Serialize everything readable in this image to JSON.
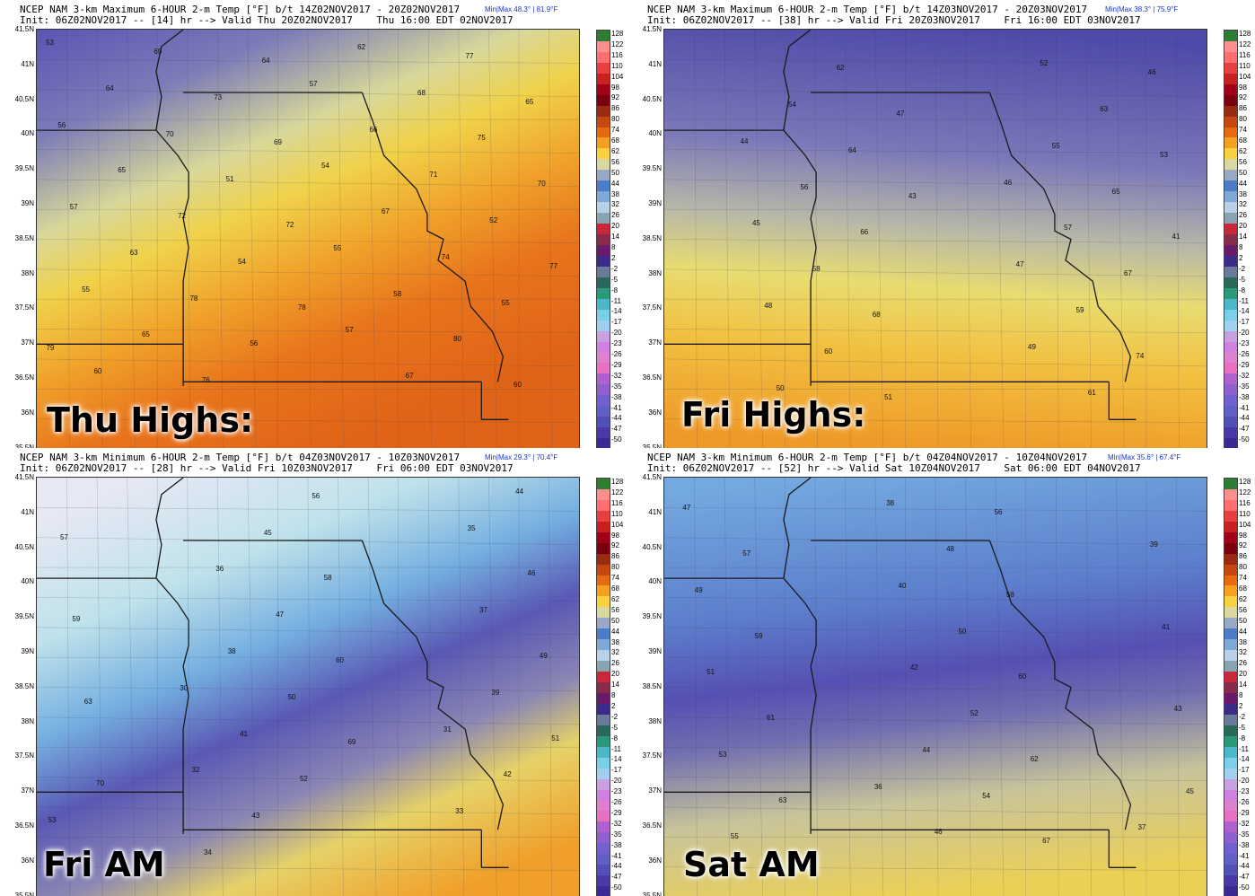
{
  "panels": [
    {
      "header_line1": "NCEP NAM 3-km Maximum 6-HOUR 2-m Temp [°F] b/t 14Z02NOV2017 - 20Z02NOV2017",
      "header_line2": "Init: 06Z02NOV2017 -- [14] hr --> Valid Thu 20Z02NOV2017    Thu 16:00 EDT 02NOV2017",
      "minmax": "Min|Max 48.3° | 81.9°F",
      "caption": "Thu Highs:",
      "theme": "warm",
      "lat_labels": [
        "41.5N",
        "41N",
        "40.5N",
        "40N",
        "39.5N",
        "39N",
        "38.5N",
        "38N",
        "37.5N",
        "37N",
        "36.5N",
        "36N",
        "35.5N"
      ],
      "values": [
        "53",
        "57",
        "56",
        "54",
        "57",
        "55",
        "55",
        "57",
        "60",
        "62",
        "64",
        "66",
        "65",
        "67",
        "63",
        "58",
        "65",
        "67",
        "69",
        "68",
        "70",
        "71",
        "72",
        "74",
        "78",
        "80",
        "76",
        "77",
        "73",
        "75",
        "51",
        "52",
        "54",
        "55",
        "56",
        "60",
        "64",
        "65",
        "69",
        "70",
        "72",
        "77",
        "78",
        "79"
      ]
    },
    {
      "header_line1": "NCEP NAM 3-km Maximum 6-HOUR 2-m Temp [°F] b/t 14Z03NOV2017 - 20Z03NOV2017",
      "header_line2": "Init: 06Z02NOV2017 -- [38] hr --> Valid Fri 20Z03NOV2017    Fri 16:00 EDT 03NOV2017",
      "minmax": "Min|Max 38.3° | 75.9°F",
      "caption": "Fri Highs:",
      "theme": "mixed",
      "lat_labels": [
        "41.5N",
        "41N",
        "40.5N",
        "40N",
        "39.5N",
        "39N",
        "38.5N",
        "38N",
        "37.5N",
        "37N",
        "36.5N",
        "36N",
        "35.5N"
      ],
      "values": [
        "44",
        "46",
        "45",
        "47",
        "48",
        "49",
        "50",
        "52",
        "54",
        "55",
        "56",
        "57",
        "58",
        "59",
        "60",
        "61",
        "62",
        "63",
        "64",
        "65",
        "66",
        "67",
        "68",
        "74",
        "51",
        "46",
        "47",
        "53",
        "43",
        "41"
      ]
    },
    {
      "header_line1": "NCEP NAM 3-km Minimum 6-HOUR 2-m Temp [°F] b/t 04Z03NOV2017 - 10Z03NOV2017",
      "header_line2": "Init: 06Z02NOV2017 -- [28] hr --> Valid Fri 10Z03NOV2017    Fri 06:00 EDT 03NOV2017",
      "minmax": "Min|Max 29.3° | 70.4°F",
      "caption": "Fri AM",
      "theme": "cold-warm",
      "lat_labels": [
        "41.5N",
        "41N",
        "40.5N",
        "40N",
        "39.5N",
        "39N",
        "38.5N",
        "38N",
        "37.5N",
        "37N",
        "36.5N",
        "36N",
        "35.5N"
      ],
      "values": [
        "30",
        "31",
        "32",
        "33",
        "34",
        "35",
        "36",
        "37",
        "38",
        "39",
        "41",
        "42",
        "43",
        "44",
        "45",
        "46",
        "47",
        "49",
        "50",
        "51",
        "52",
        "53",
        "56",
        "57",
        "58",
        "59",
        "60",
        "63",
        "69",
        "70"
      ]
    },
    {
      "header_line1": "NCEP NAM 3-km Minimum 6-HOUR 2-m Temp [°F] b/t 04Z04NOV2017 - 10Z04NOV2017",
      "header_line2": "Init: 06Z02NOV2017 -- [52] hr --> Valid Sat 10Z04NOV2017    Sat 06:00 EDT 04NOV2017",
      "minmax": "Min|Max 35.6° | 67.4°F",
      "caption": "Sat AM",
      "theme": "cool",
      "lat_labels": [
        "41.5N",
        "41N",
        "40.5N",
        "40N",
        "39.5N",
        "39N",
        "38.5N",
        "38N",
        "37.5N",
        "37N",
        "36.5N",
        "36N",
        "35.5N"
      ],
      "values": [
        "36",
        "37",
        "38",
        "39",
        "40",
        "41",
        "42",
        "43",
        "44",
        "45",
        "46",
        "47",
        "48",
        "49",
        "50",
        "51",
        "52",
        "53",
        "54",
        "55",
        "56",
        "57",
        "58",
        "59",
        "60",
        "61",
        "62",
        "63",
        "67"
      ]
    }
  ],
  "colorbar": {
    "labels": [
      "128",
      "122",
      "116",
      "110",
      "104",
      "98",
      "92",
      "86",
      "80",
      "74",
      "68",
      "62",
      "56",
      "50",
      "44",
      "38",
      "32",
      "26",
      "20",
      "14",
      "8",
      "2",
      "-2",
      "-5",
      "-8",
      "-11",
      "-14",
      "-17",
      "-20",
      "-23",
      "-26",
      "-29",
      "-32",
      "-35",
      "-38",
      "-41",
      "-44",
      "-47",
      "-50"
    ],
    "colors": [
      "#2e7d32",
      "#ff8f8f",
      "#ff6f6f",
      "#e84040",
      "#c82020",
      "#a00018",
      "#7a0010",
      "#9a2a10",
      "#c44810",
      "#e86a10",
      "#f5a020",
      "#f8d040",
      "#d8d8a0",
      "#9aa8c8",
      "#4a7cc8",
      "#7ea8d8",
      "#b8d0e8",
      "#88a4b0",
      "#c8283a",
      "#8a2a4a",
      "#6a1a6a",
      "#3a2a8a",
      "#6a7a9a",
      "#2a6a5a",
      "#2a9a7a",
      "#4ab8c8",
      "#7ad0e8",
      "#a0d0f0",
      "#c8a0e0",
      "#d080e0",
      "#e080d0",
      "#e870c0",
      "#b060d0",
      "#9060d0",
      "#7060d0",
      "#6060c8",
      "#5050b8",
      "#4838a8",
      "#3a2a98"
    ]
  }
}
